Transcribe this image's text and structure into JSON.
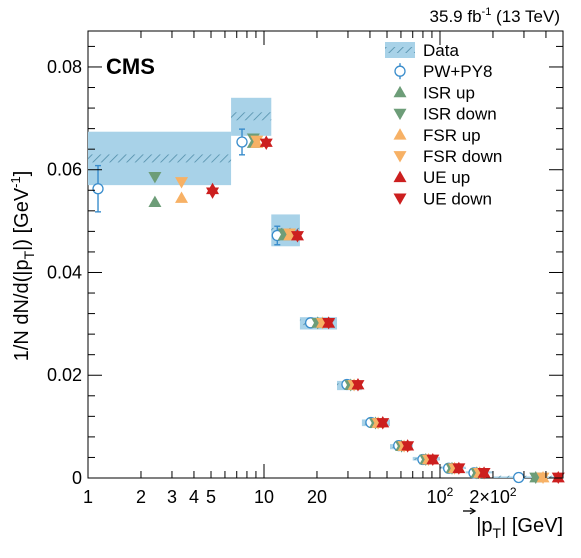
{
  "header": {
    "lumi_text": "35.9 fb",
    "lumi_sup": "-1",
    "lumi_suffix": " (13 TeV)",
    "experiment": "CMS"
  },
  "chart_data": {
    "type": "scatter",
    "xscale": "log",
    "xlim": [
      1,
      500
    ],
    "ylim": [
      0,
      0.087
    ],
    "xlabel": "|p_T| [GeV]",
    "ylabel": "1/N dN/d(|p_T|) [GeV^-1]",
    "x_tick_labels": [
      {
        "value": 1,
        "label": "1"
      },
      {
        "value": 2,
        "label": "2"
      },
      {
        "value": 3,
        "label": "3"
      },
      {
        "value": 4,
        "label": "4"
      },
      {
        "value": 5,
        "label": "5"
      },
      {
        "value": 10,
        "label": "10"
      },
      {
        "value": 20,
        "label": "20"
      },
      {
        "value": 100,
        "label": "10",
        "exp": "2"
      },
      {
        "value": 200,
        "label": "2×10",
        "exp": "2"
      }
    ],
    "y_tick_labels": [
      {
        "value": 0,
        "label": "0"
      },
      {
        "value": 0.02,
        "label": "0.02"
      },
      {
        "value": 0.04,
        "label": "0.04"
      },
      {
        "value": 0.06,
        "label": "0.06"
      },
      {
        "value": 0.08,
        "label": "0.08"
      }
    ],
    "data_bins": [
      {
        "xlo": 1,
        "xhi": 6.5,
        "value": 0.0622,
        "unc_lo": 0.057,
        "unc_hi": 0.0674
      },
      {
        "xlo": 6.5,
        "xhi": 11,
        "value": 0.0704,
        "unc_lo": 0.0666,
        "unc_hi": 0.074
      },
      {
        "xlo": 11,
        "xhi": 16,
        "value": 0.0479,
        "unc_lo": 0.0451,
        "unc_hi": 0.0513
      },
      {
        "xlo": 16,
        "xhi": 26,
        "value": 0.0303,
        "unc_lo": 0.0289,
        "unc_hi": 0.0313
      },
      {
        "xlo": 26,
        "xhi": 36,
        "value": 0.018,
        "unc_lo": 0.0171,
        "unc_hi": 0.0189
      },
      {
        "xlo": 36,
        "xhi": 52,
        "value": 0.0107,
        "unc_lo": 0.0101,
        "unc_hi": 0.0114
      },
      {
        "xlo": 52,
        "xhi": 70,
        "value": 0.0061,
        "unc_lo": 0.0056,
        "unc_hi": 0.0066
      },
      {
        "xlo": 70,
        "xhi": 100,
        "value": 0.0037,
        "unc_lo": 0.0034,
        "unc_hi": 0.0041
      },
      {
        "xlo": 100,
        "xhi": 140,
        "value": 0.002,
        "unc_lo": 0.0018,
        "unc_hi": 0.0022
      },
      {
        "xlo": 140,
        "xhi": 200,
        "value": 0.0011,
        "unc_lo": 0.0009,
        "unc_hi": 0.0013
      },
      {
        "xlo": 200,
        "xhi": 500,
        "value": 0.00025,
        "unc_lo": 0.0002,
        "unc_hi": 0.0003
      }
    ],
    "series": [
      {
        "name": "PW+PY8",
        "marker": "open-circle",
        "color": "#3a8dcc",
        "points": [
          {
            "x": 1.14,
            "y": 0.0563,
            "err": 0.0045
          },
          {
            "x": 7.5,
            "y": 0.0654,
            "err": 0.0025
          },
          {
            "x": 11.9,
            "y": 0.0472,
            "err": 0.0018
          },
          {
            "x": 18.4,
            "y": 0.0302,
            "err": 0.0008
          },
          {
            "x": 29.6,
            "y": 0.0182,
            "err": 0.0005
          },
          {
            "x": 40.5,
            "y": 0.0108,
            "err": 0.0004
          },
          {
            "x": 58.3,
            "y": 0.0063,
            "err": 0.0003
          },
          {
            "x": 80,
            "y": 0.0036,
            "err": 0.0002
          },
          {
            "x": 112,
            "y": 0.0019,
            "err": 0.0001
          },
          {
            "x": 156,
            "y": 0.001,
            "err": 0.0001
          },
          {
            "x": 280,
            "y": 0.0001,
            "err": 0.0
          }
        ]
      },
      {
        "name": "ISR up",
        "marker": "triangle-up",
        "color": "#6d9d78",
        "points": [
          {
            "x": 2.4,
            "y": 0.0537
          },
          {
            "x": 8.7,
            "y": 0.0652
          },
          {
            "x": 13,
            "y": 0.0472
          },
          {
            "x": 20.2,
            "y": 0.0302
          },
          {
            "x": 31.1,
            "y": 0.0181
          },
          {
            "x": 43,
            "y": 0.0107
          },
          {
            "x": 60.5,
            "y": 0.0062
          },
          {
            "x": 83,
            "y": 0.0036
          },
          {
            "x": 117,
            "y": 0.0019
          },
          {
            "x": 162,
            "y": 0.001
          },
          {
            "x": 350,
            "y": 0.0001
          }
        ]
      },
      {
        "name": "ISR down",
        "marker": "triangle-down",
        "color": "#6d9d78",
        "points": [
          {
            "x": 2.4,
            "y": 0.0586
          },
          {
            "x": 8.7,
            "y": 0.0661
          },
          {
            "x": 13,
            "y": 0.0476
          },
          {
            "x": 20.2,
            "y": 0.0302
          },
          {
            "x": 31.1,
            "y": 0.0181
          },
          {
            "x": 43,
            "y": 0.0107
          },
          {
            "x": 60.5,
            "y": 0.0062
          },
          {
            "x": 83,
            "y": 0.0036
          },
          {
            "x": 117,
            "y": 0.0019
          },
          {
            "x": 162,
            "y": 0.001
          },
          {
            "x": 350,
            "y": 0.0001
          }
        ]
      },
      {
        "name": "FSR up",
        "marker": "triangle-up",
        "color": "#f7b165",
        "points": [
          {
            "x": 3.4,
            "y": 0.0545
          },
          {
            "x": 9.1,
            "y": 0.0652
          },
          {
            "x": 14,
            "y": 0.0472
          },
          {
            "x": 21.5,
            "y": 0.0302
          },
          {
            "x": 32.5,
            "y": 0.0181
          },
          {
            "x": 44.5,
            "y": 0.0107
          },
          {
            "x": 62.5,
            "y": 0.0062
          },
          {
            "x": 86,
            "y": 0.0036
          },
          {
            "x": 121,
            "y": 0.0019
          },
          {
            "x": 168,
            "y": 0.001
          },
          {
            "x": 385,
            "y": 0.0001
          }
        ]
      },
      {
        "name": "FSR down",
        "marker": "triangle-down",
        "color": "#f7b165",
        "points": [
          {
            "x": 3.4,
            "y": 0.0576
          },
          {
            "x": 9.1,
            "y": 0.0657
          },
          {
            "x": 14,
            "y": 0.0476
          },
          {
            "x": 21.5,
            "y": 0.0302
          },
          {
            "x": 32.5,
            "y": 0.0181
          },
          {
            "x": 44.5,
            "y": 0.0107
          },
          {
            "x": 62.5,
            "y": 0.0062
          },
          {
            "x": 86,
            "y": 0.0036
          },
          {
            "x": 121,
            "y": 0.0019
          },
          {
            "x": 168,
            "y": 0.001
          },
          {
            "x": 385,
            "y": 0.0001
          }
        ]
      },
      {
        "name": "UE up",
        "marker": "triangle-up",
        "color": "#cc1f1f",
        "points": [
          {
            "x": 5.1,
            "y": 0.0562
          },
          {
            "x": 10.3,
            "y": 0.0654
          },
          {
            "x": 15.5,
            "y": 0.0472
          },
          {
            "x": 23.3,
            "y": 0.0302
          },
          {
            "x": 34.2,
            "y": 0.0182
          },
          {
            "x": 47.3,
            "y": 0.0108
          },
          {
            "x": 65.5,
            "y": 0.0063
          },
          {
            "x": 91,
            "y": 0.0036
          },
          {
            "x": 128,
            "y": 0.0019
          },
          {
            "x": 178,
            "y": 0.001
          },
          {
            "x": 470,
            "y": 0.0001
          }
        ]
      },
      {
        "name": "UE down",
        "marker": "triangle-down",
        "color": "#cc1f1f",
        "points": [
          {
            "x": 5.1,
            "y": 0.0556
          },
          {
            "x": 10.3,
            "y": 0.0651
          },
          {
            "x": 15.5,
            "y": 0.0471
          },
          {
            "x": 23.3,
            "y": 0.0302
          },
          {
            "x": 34.2,
            "y": 0.0181
          },
          {
            "x": 47.3,
            "y": 0.0107
          },
          {
            "x": 65.5,
            "y": 0.0062
          },
          {
            "x": 91,
            "y": 0.0036
          },
          {
            "x": 128,
            "y": 0.0019
          },
          {
            "x": 178,
            "y": 0.001
          },
          {
            "x": 470,
            "y": 0.0001
          }
        ]
      }
    ],
    "legend": {
      "placement": "top-right",
      "entries": [
        {
          "label": "Data",
          "marker": "hatched-band"
        },
        {
          "label": "PW+PY8",
          "marker": "open-circle"
        },
        {
          "label": "ISR up",
          "marker": "triangle-up"
        },
        {
          "label": "ISR down",
          "marker": "triangle-down"
        },
        {
          "label": "FSR up",
          "marker": "triangle-up"
        },
        {
          "label": "FSR down",
          "marker": "triangle-down"
        },
        {
          "label": "UE up",
          "marker": "triangle-up"
        },
        {
          "label": "UE down",
          "marker": "triangle-down"
        }
      ]
    },
    "colors": {
      "band": "#a8d2e8",
      "hatch": "#4f8ca8",
      "pw": "#3a8dcc",
      "isr": "#6d9d78",
      "fsr": "#f7b165",
      "ue": "#cc1f1f"
    }
  }
}
